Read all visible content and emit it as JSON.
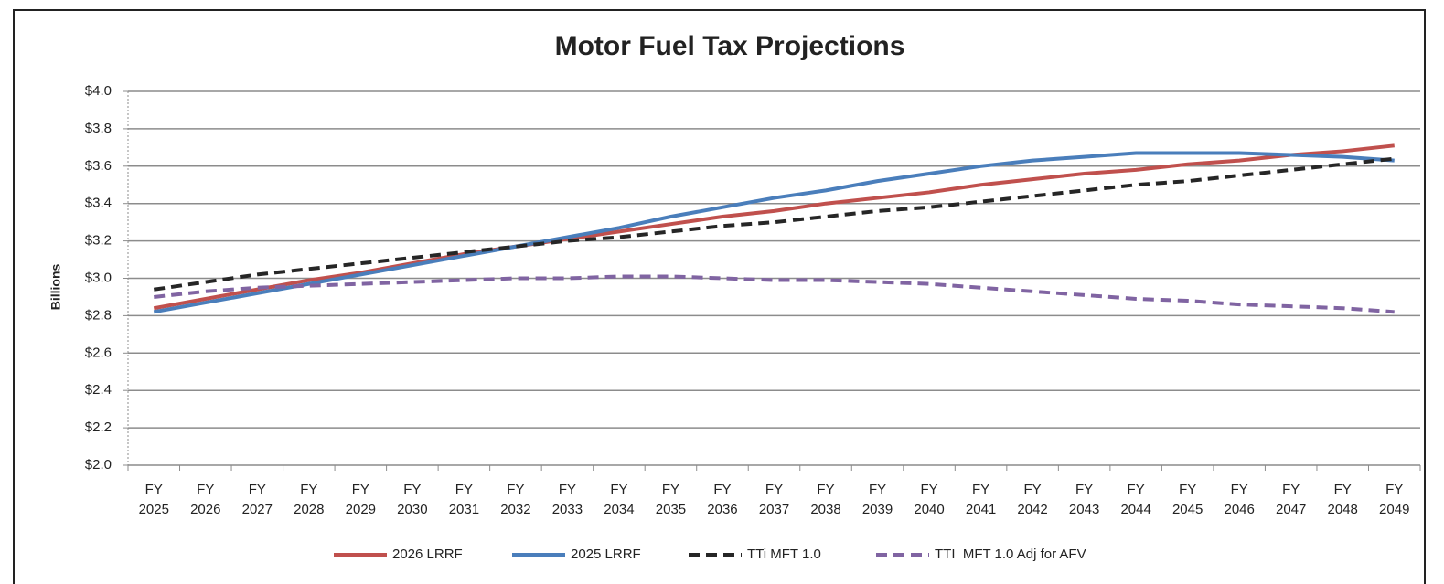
{
  "chart_data": {
    "type": "line",
    "title": "Motor Fuel Tax Projections",
    "y_label": "Billions",
    "categories": [
      "FY 2025",
      "FY 2026",
      "FY 2027",
      "FY 2028",
      "FY 2029",
      "FY 2030",
      "FY 2031",
      "FY 2032",
      "FY 2033",
      "FY 2034",
      "FY 2035",
      "FY 2036",
      "FY 2037",
      "FY 2038",
      "FY 2039",
      "FY 2040",
      "FY 2041",
      "FY 2042",
      "FY 2043",
      "FY 2044",
      "FY 2045",
      "FY 2046",
      "FY 2047",
      "FY 2048",
      "FY 2049"
    ],
    "series": [
      {
        "name": "2026 LRRF",
        "color": "#c0504d",
        "dashed": false,
        "values": [
          2.84,
          2.89,
          2.94,
          2.99,
          3.03,
          3.08,
          3.13,
          3.17,
          3.21,
          3.25,
          3.29,
          3.33,
          3.36,
          3.4,
          3.43,
          3.46,
          3.5,
          3.53,
          3.56,
          3.58,
          3.61,
          3.63,
          3.66,
          3.68,
          3.71
        ]
      },
      {
        "name": "2025 LRRF",
        "color": "#4a7ebb",
        "dashed": false,
        "values": [
          2.82,
          2.87,
          2.92,
          2.97,
          3.02,
          3.07,
          3.12,
          3.17,
          3.22,
          3.27,
          3.33,
          3.38,
          3.43,
          3.47,
          3.52,
          3.56,
          3.6,
          3.63,
          3.65,
          3.67,
          3.67,
          3.67,
          3.66,
          3.65,
          3.63
        ]
      },
      {
        "name": "TTi MFT 1.0",
        "color": "#262626",
        "dashed": true,
        "values": [
          2.94,
          2.98,
          3.02,
          3.05,
          3.08,
          3.11,
          3.14,
          3.17,
          3.2,
          3.22,
          3.25,
          3.28,
          3.3,
          3.33,
          3.36,
          3.38,
          3.41,
          3.44,
          3.47,
          3.5,
          3.52,
          3.55,
          3.58,
          3.61,
          3.64
        ]
      },
      {
        "name": "TTI  MFT 1.0 Adj for AFV",
        "color": "#8064a2",
        "dashed": true,
        "values": [
          2.9,
          2.93,
          2.95,
          2.96,
          2.97,
          2.98,
          2.99,
          3.0,
          3.0,
          3.01,
          3.01,
          3.0,
          2.99,
          2.99,
          2.98,
          2.97,
          2.95,
          2.93,
          2.91,
          2.89,
          2.88,
          2.86,
          2.85,
          2.84,
          2.82
        ]
      }
    ],
    "ylim": [
      2.0,
      4.0
    ],
    "yticks": [
      {
        "value": 2.0,
        "label": "$2.0"
      },
      {
        "value": 2.2,
        "label": "$2.2"
      },
      {
        "value": 2.4,
        "label": "$2.4"
      },
      {
        "value": 2.6,
        "label": "$2.6"
      },
      {
        "value": 2.8,
        "label": "$2.8"
      },
      {
        "value": 3.0,
        "label": "$3.0"
      },
      {
        "value": 3.2,
        "label": "$3.2"
      },
      {
        "value": 3.4,
        "label": "$3.4"
      },
      {
        "value": 3.6,
        "label": "$3.6"
      },
      {
        "value": 3.8,
        "label": "$3.8"
      },
      {
        "value": 4.0,
        "label": "$4.0"
      }
    ],
    "grid": true,
    "legend": "bottom"
  }
}
